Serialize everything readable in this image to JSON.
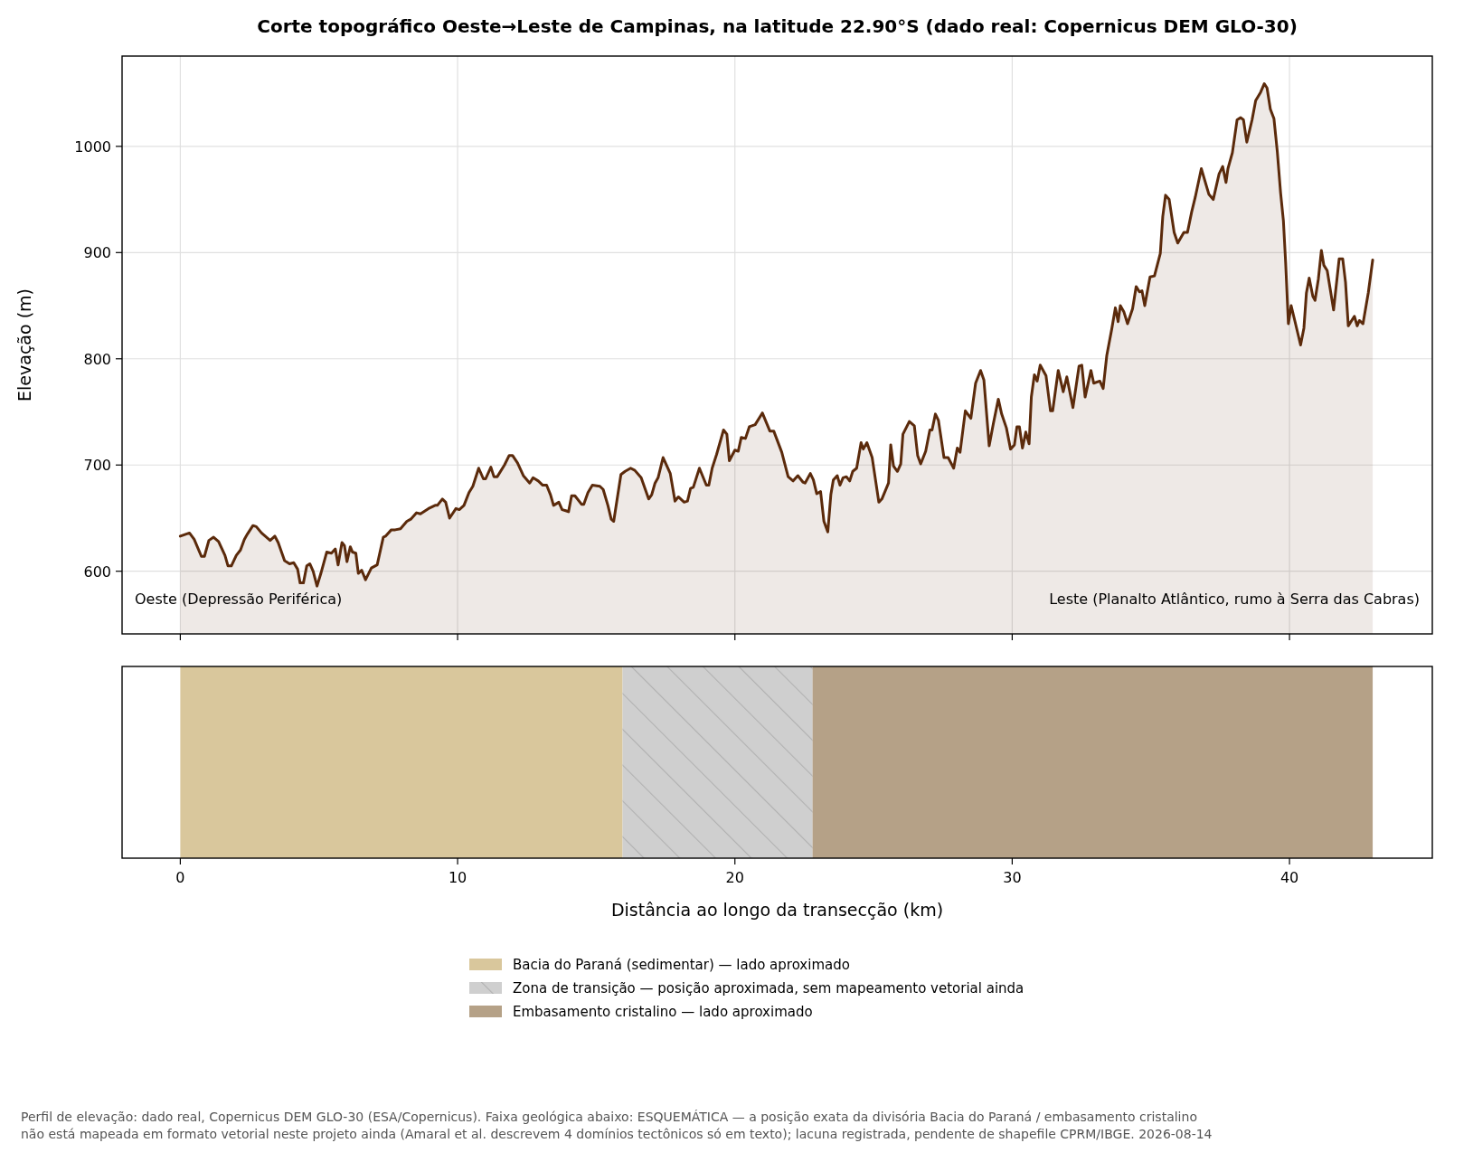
{
  "chart_data": [
    {
      "type": "area",
      "title": "Corte topográfico Oeste→Leste de Campinas, na latitude 22.90°S (dado real: Copernicus DEM GLO-30)",
      "ylabel": "Elevação (m)",
      "xlim": [
        -2.1,
        45.15
      ],
      "xticks": [
        0,
        10,
        20,
        30,
        40
      ],
      "ylim": [
        541,
        1085
      ],
      "yticks": [
        600,
        700,
        800,
        900,
        1000
      ],
      "grid": true,
      "tick_labels": "y",
      "color": "#5b2a0b",
      "annotations": [
        "Oeste (Depressão Periférica)",
        "Leste (Planalto Atlântico, rumo à Serra das Cabras)"
      ],
      "x": [
        0,
        0.33,
        0.5,
        0.76,
        0.87,
        1.03,
        1.2,
        1.38,
        1.61,
        1.72,
        1.84,
        2.02,
        2.17,
        2.31,
        2.42,
        2.62,
        2.74,
        2.93,
        3.24,
        3.41,
        3.53,
        3.76,
        3.94,
        4.09,
        4.23,
        4.32,
        4.44,
        4.56,
        4.67,
        4.79,
        4.93,
        5.07,
        5.28,
        5.45,
        5.59,
        5.69,
        5.83,
        5.92,
        6.01,
        6.13,
        6.21,
        6.33,
        6.42,
        6.54,
        6.68,
        6.89,
        7.1,
        7.32,
        7.4,
        7.61,
        7.75,
        7.94,
        8.17,
        8.31,
        8.52,
        8.66,
        8.95,
        9.19,
        9.27,
        9.45,
        9.57,
        9.71,
        9.94,
        10.06,
        10.23,
        10.41,
        10.55,
        10.76,
        10.93,
        11.01,
        11.2,
        11.31,
        11.43,
        11.69,
        11.86,
        11.98,
        12.16,
        12.37,
        12.6,
        12.72,
        12.91,
        13.07,
        13.21,
        13.35,
        13.46,
        13.65,
        13.77,
        13.9,
        14.0,
        14.11,
        14.23,
        14.47,
        14.55,
        14.7,
        14.86,
        15.13,
        15.25,
        15.42,
        15.54,
        15.63,
        15.89,
        16.04,
        16.24,
        16.39,
        16.62,
        16.89,
        17.0,
        17.12,
        17.23,
        17.41,
        17.67,
        17.84,
        17.96,
        18.17,
        18.29,
        18.4,
        18.5,
        18.72,
        18.97,
        19.06,
        19.18,
        19.34,
        19.59,
        19.71,
        19.8,
        20.0,
        20.12,
        20.23,
        20.38,
        20.52,
        20.73,
        20.99,
        21.26,
        21.4,
        21.69,
        21.92,
        22.1,
        22.27,
        22.45,
        22.53,
        22.72,
        22.83,
        22.95,
        23.09,
        23.21,
        23.35,
        23.46,
        23.55,
        23.69,
        23.79,
        23.9,
        24.02,
        24.14,
        24.25,
        24.39,
        24.55,
        24.63,
        24.76,
        24.95,
        25.19,
        25.3,
        25.54,
        25.62,
        25.72,
        25.86,
        25.98,
        26.06,
        26.29,
        26.47,
        26.59,
        26.7,
        26.88,
        27.03,
        27.11,
        27.23,
        27.34,
        27.54,
        27.69,
        27.89,
        28.02,
        28.12,
        28.31,
        28.51,
        28.68,
        28.86,
        28.98,
        29.17,
        29.32,
        29.5,
        29.62,
        29.79,
        29.94,
        30.08,
        30.17,
        30.26,
        30.37,
        30.49,
        30.61,
        30.69,
        30.8,
        30.9,
        31.01,
        31.22,
        31.38,
        31.46,
        31.66,
        31.84,
        31.97,
        32.19,
        32.41,
        32.51,
        32.63,
        32.84,
        32.94,
        33.16,
        33.28,
        33.41,
        33.59,
        33.72,
        33.82,
        33.9,
        34.03,
        34.16,
        34.34,
        34.47,
        34.59,
        34.68,
        34.78,
        34.97,
        35.13,
        35.34,
        35.43,
        35.53,
        35.66,
        35.84,
        35.97,
        36.19,
        36.32,
        36.47,
        36.6,
        36.82,
        37.09,
        37.25,
        37.46,
        37.59,
        37.71,
        37.78,
        37.94,
        38.11,
        38.24,
        38.34,
        38.46,
        38.65,
        38.78,
        38.96,
        39.09,
        39.19,
        39.31,
        39.44,
        39.56,
        39.68,
        39.78,
        39.86,
        39.96,
        40.06,
        40.19,
        40.4,
        40.52,
        40.61,
        40.71,
        40.84,
        40.92,
        41.04,
        41.15,
        41.24,
        41.36,
        41.59,
        41.79,
        41.92,
        42.02,
        42.12,
        42.34,
        42.44,
        42.52,
        42.65,
        42.84,
        43.0
      ],
      "values": [
        633,
        636,
        630,
        614,
        614,
        629,
        632,
        628,
        615,
        605,
        605,
        615,
        620,
        630,
        635,
        643,
        642,
        636,
        629,
        633,
        627,
        610,
        607,
        608,
        602,
        589,
        589,
        605,
        607,
        600,
        586,
        598,
        618,
        617,
        621,
        606,
        627,
        624,
        609,
        623,
        618,
        617,
        598,
        601,
        592,
        603,
        606,
        632,
        633,
        639,
        639,
        640,
        647,
        649,
        655,
        654,
        659,
        662,
        662,
        668,
        665,
        650,
        659,
        658,
        662,
        674,
        680,
        697,
        687,
        687,
        698,
        689,
        689,
        700,
        709,
        709,
        702,
        690,
        683,
        688,
        685,
        681,
        681,
        672,
        662,
        665,
        658,
        657,
        656,
        671,
        671,
        663,
        663,
        674,
        681,
        680,
        677,
        662,
        649,
        647,
        691,
        694,
        697,
        695,
        688,
        668,
        672,
        683,
        688,
        707,
        692,
        666,
        670,
        665,
        666,
        678,
        679,
        697,
        681,
        681,
        697,
        710,
        733,
        729,
        704,
        714,
        713,
        726,
        725,
        736,
        738,
        749,
        732,
        732,
        712,
        689,
        685,
        690,
        684,
        683,
        692,
        686,
        673,
        675,
        647,
        637,
        672,
        686,
        690,
        681,
        688,
        689,
        685,
        694,
        697,
        721,
        715,
        721,
        707,
        665,
        668,
        683,
        719,
        699,
        694,
        701,
        729,
        741,
        737,
        709,
        701,
        713,
        733,
        733,
        748,
        742,
        707,
        707,
        697,
        716,
        712,
        751,
        744,
        777,
        789,
        780,
        718,
        739,
        762,
        748,
        735,
        715,
        719,
        736,
        736,
        716,
        731,
        720,
        764,
        785,
        779,
        794,
        784,
        751,
        751,
        789,
        769,
        783,
        754,
        793,
        794,
        764,
        789,
        777,
        779,
        772,
        803,
        828,
        848,
        835,
        850,
        844,
        833,
        847,
        868,
        863,
        864,
        850,
        877,
        878,
        899,
        934,
        954,
        950,
        919,
        909,
        919,
        919,
        938,
        952,
        979,
        955,
        950,
        974,
        981,
        966,
        979,
        994,
        1025,
        1027,
        1025,
        1004,
        1025,
        1043,
        1051,
        1059,
        1055,
        1035,
        1026,
        995,
        956,
        930,
        891,
        833,
        850,
        836,
        813,
        829,
        862,
        876,
        859,
        855,
        875,
        902,
        888,
        883,
        846,
        894,
        894,
        872,
        831,
        840,
        831,
        836,
        833,
        862,
        893
      ]
    },
    {
      "type": "bar",
      "orientation": "horizontal",
      "stacked": true,
      "categories": [
        null
      ],
      "xlim": [
        -2.1,
        45.15
      ],
      "xticks": [
        0,
        10,
        20,
        30,
        40
      ],
      "xlabel": "Distância ao longo da transecção (km)",
      "tick_labels": "x",
      "legend": "bottom",
      "series": [
        {
          "name": "Bacia do Paraná (sedimentar) — lado aproximado",
          "color": "#d9c79c",
          "values": [
            15.95
          ]
        },
        {
          "name": "Zona de transição — posição aproximada, sem mapeamento vetorial ainda",
          "color": "#cfcfcf",
          "values": [
            6.85
          ]
        },
        {
          "name": "Embasamento cristalino — lado aproximado",
          "color": "#b5a187",
          "values": [
            20.2
          ]
        }
      ],
      "annotations": [
        "Perfil de elevação: dado real, Copernicus DEM GLO-30 (ESA/Copernicus). Faixa geológica abaixo: ESQUEMÁTICA — a posição exata da divisória Bacia do Paraná / embasamento cristalino não está mapeada em formato vetorial neste projeto ainda (Amaral et al. descrevem 4 domínios tectônicos só em texto); lacuna registrada, pendente de shapefile CPRM/IBGE. 2026-08-14"
      ]
    }
  ]
}
